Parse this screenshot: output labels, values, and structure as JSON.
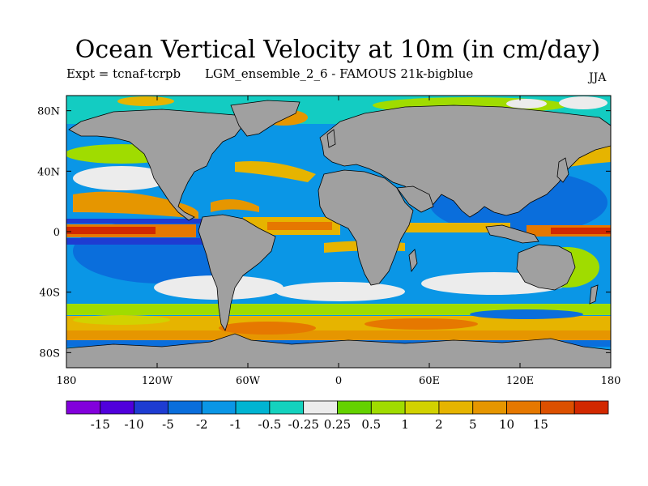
{
  "title": "Ocean Vertical Velocity at 10m (in cm/day)",
  "expt_label": "Expt = tcnaf-tcrpb",
  "run_label": "LGM_ensemble_2_6 - FAMOUS 21k-bigblue",
  "season": "JJA",
  "colors": {
    "land": "#a0a0a0",
    "levels": [
      "#8200dc",
      "#5000dc",
      "#1e3cd2",
      "#0a6edc",
      "#0a96e6",
      "#00b4d2",
      "#14d2be",
      "#ececec",
      "#64d200",
      "#a0dc00",
      "#d2d200",
      "#e6b400",
      "#e69600",
      "#e67800",
      "#dc5000",
      "#d22800"
    ]
  },
  "colorbar": {
    "labels": [
      "-15",
      "-10",
      "-5",
      "-2",
      "-1",
      "-0.5",
      "-0.25",
      "0.25",
      "0.5",
      "1",
      "2",
      "5",
      "10",
      "15"
    ]
  },
  "map": {
    "projection": "equirectangular",
    "lon_range": [
      -180,
      180
    ],
    "lat_range": [
      -90,
      90
    ],
    "lon_ticks": [
      "180",
      "120W",
      "60W",
      "0",
      "60E",
      "120E",
      "180"
    ],
    "lat_ticks": [
      "80N",
      "40N",
      "0",
      "40S",
      "80S"
    ]
  }
}
